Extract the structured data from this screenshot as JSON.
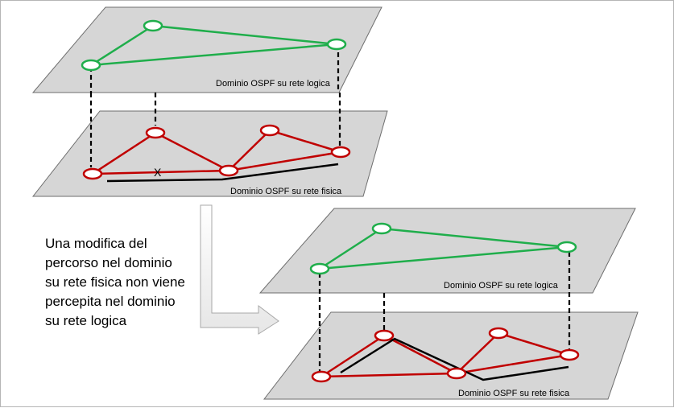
{
  "colors": {
    "logical": "#1fae4b",
    "physical": "#c00000",
    "path": "#000000",
    "plane_fill": "#d6d6d6"
  },
  "labels": {
    "logical_domain": "Dominio OSPF su rete logica",
    "physical_domain": "Dominio OSPF su rete fisica",
    "failure_mark": "X"
  },
  "caption": {
    "lines": [
      "Una modifica del",
      "percorso nel dominio",
      "su rete fisica non viene",
      "percepita nel dominio",
      "su rete logica"
    ]
  }
}
